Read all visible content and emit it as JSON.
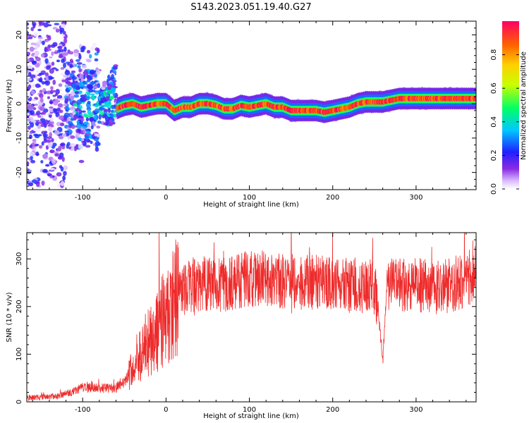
{
  "title": "S143.2023.051.19.40.G27",
  "colors": {
    "snr_line": "#ee2b2b",
    "axis": "#000000",
    "background": "#ffffff"
  },
  "chart_data": [
    {
      "type": "heatmap",
      "xlabel": "Height of straight line (km)",
      "ylabel": "Frequency (Hz)",
      "xlim": [
        -167,
        372
      ],
      "ylim": [
        -25,
        24
      ],
      "xticks": [
        -100,
        0,
        100,
        200,
        300
      ],
      "yticks": [
        -20,
        -10,
        0,
        10,
        20
      ],
      "colorbar": {
        "label": "Normalized spectral amplitude",
        "ticks": [
          "0.0",
          "0.2",
          "0.4",
          "0.6",
          "0.8"
        ],
        "range": [
          0,
          1
        ]
      },
      "ridge_frequency": {
        "x": [
          -60,
          -50,
          -40,
          -30,
          -20,
          -10,
          0,
          10,
          20,
          30,
          40,
          50,
          60,
          70,
          80,
          90,
          100,
          110,
          120,
          130,
          140,
          150,
          160,
          170,
          180,
          190,
          200,
          210,
          220,
          230,
          240,
          250,
          260,
          270,
          280,
          290,
          300,
          320,
          340,
          360,
          372
        ],
        "y": [
          -1.5,
          -0.5,
          0,
          -1,
          -0.5,
          0,
          0,
          -2,
          -1,
          -1,
          0,
          0,
          -0.5,
          -1.5,
          -1.5,
          -0.5,
          -1,
          -0.5,
          0,
          -1,
          -1,
          -2,
          -2,
          -2,
          -2,
          -2.5,
          -2,
          -1.5,
          -1,
          0,
          0.5,
          0.5,
          0.5,
          1,
          1.5,
          1.5,
          1.5,
          1.5,
          1.5,
          1.5,
          1.5
        ]
      },
      "noise_region_x": [
        -167,
        -60
      ]
    },
    {
      "type": "line",
      "xlabel": "Height of straight line (km)",
      "ylabel": "SNR (10 * v/v)",
      "xlim": [
        -167,
        372
      ],
      "ylim": [
        0,
        355
      ],
      "xticks": [
        -100,
        0,
        100,
        200,
        300
      ],
      "yticks": [
        0,
        100,
        200,
        300
      ],
      "series": [
        {
          "x": [
            -167,
            -150,
            -130,
            -110,
            -100,
            -80,
            -60,
            -50,
            -40,
            -30,
            -20,
            -10,
            0,
            10,
            20,
            30,
            50,
            70,
            100,
            130,
            160,
            200,
            230,
            250,
            255,
            260,
            265,
            270,
            300,
            330,
            350,
            372
          ],
          "y": [
            8,
            10,
            12,
            22,
            30,
            28,
            30,
            45,
            70,
            110,
            130,
            150,
            180,
            210,
            235,
            245,
            250,
            245,
            260,
            255,
            250,
            250,
            240,
            250,
            180,
            90,
            240,
            245,
            245,
            240,
            250,
            270
          ]
        }
      ]
    }
  ]
}
